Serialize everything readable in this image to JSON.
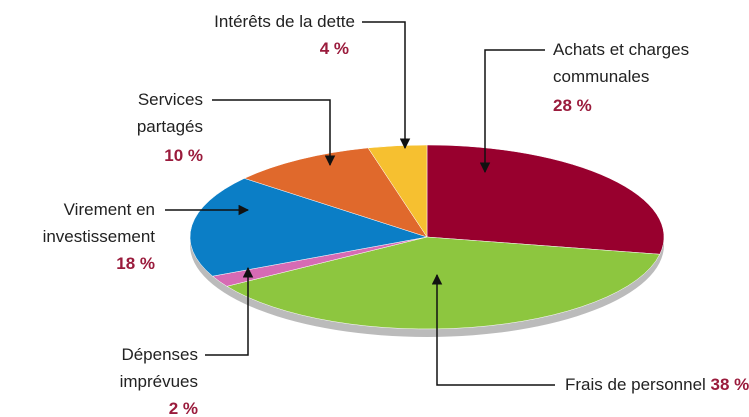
{
  "chart_data": {
    "type": "pie",
    "categories": [
      "Achats et charges communales",
      "Frais de personnel",
      "Dépenses imprévues",
      "Virement en investissement",
      "Services partagés",
      "Intérêts de la dette"
    ],
    "values": [
      28,
      38,
      2,
      18,
      10,
      4
    ],
    "value_labels": [
      "28 %",
      "38 %",
      "2 %",
      "18 %",
      "10 %",
      "4 %"
    ],
    "colors": [
      "#98002e",
      "#8dc63f",
      "#d66bb4",
      "#0b7ec6",
      "#e0692c",
      "#f6c030"
    ]
  }
}
